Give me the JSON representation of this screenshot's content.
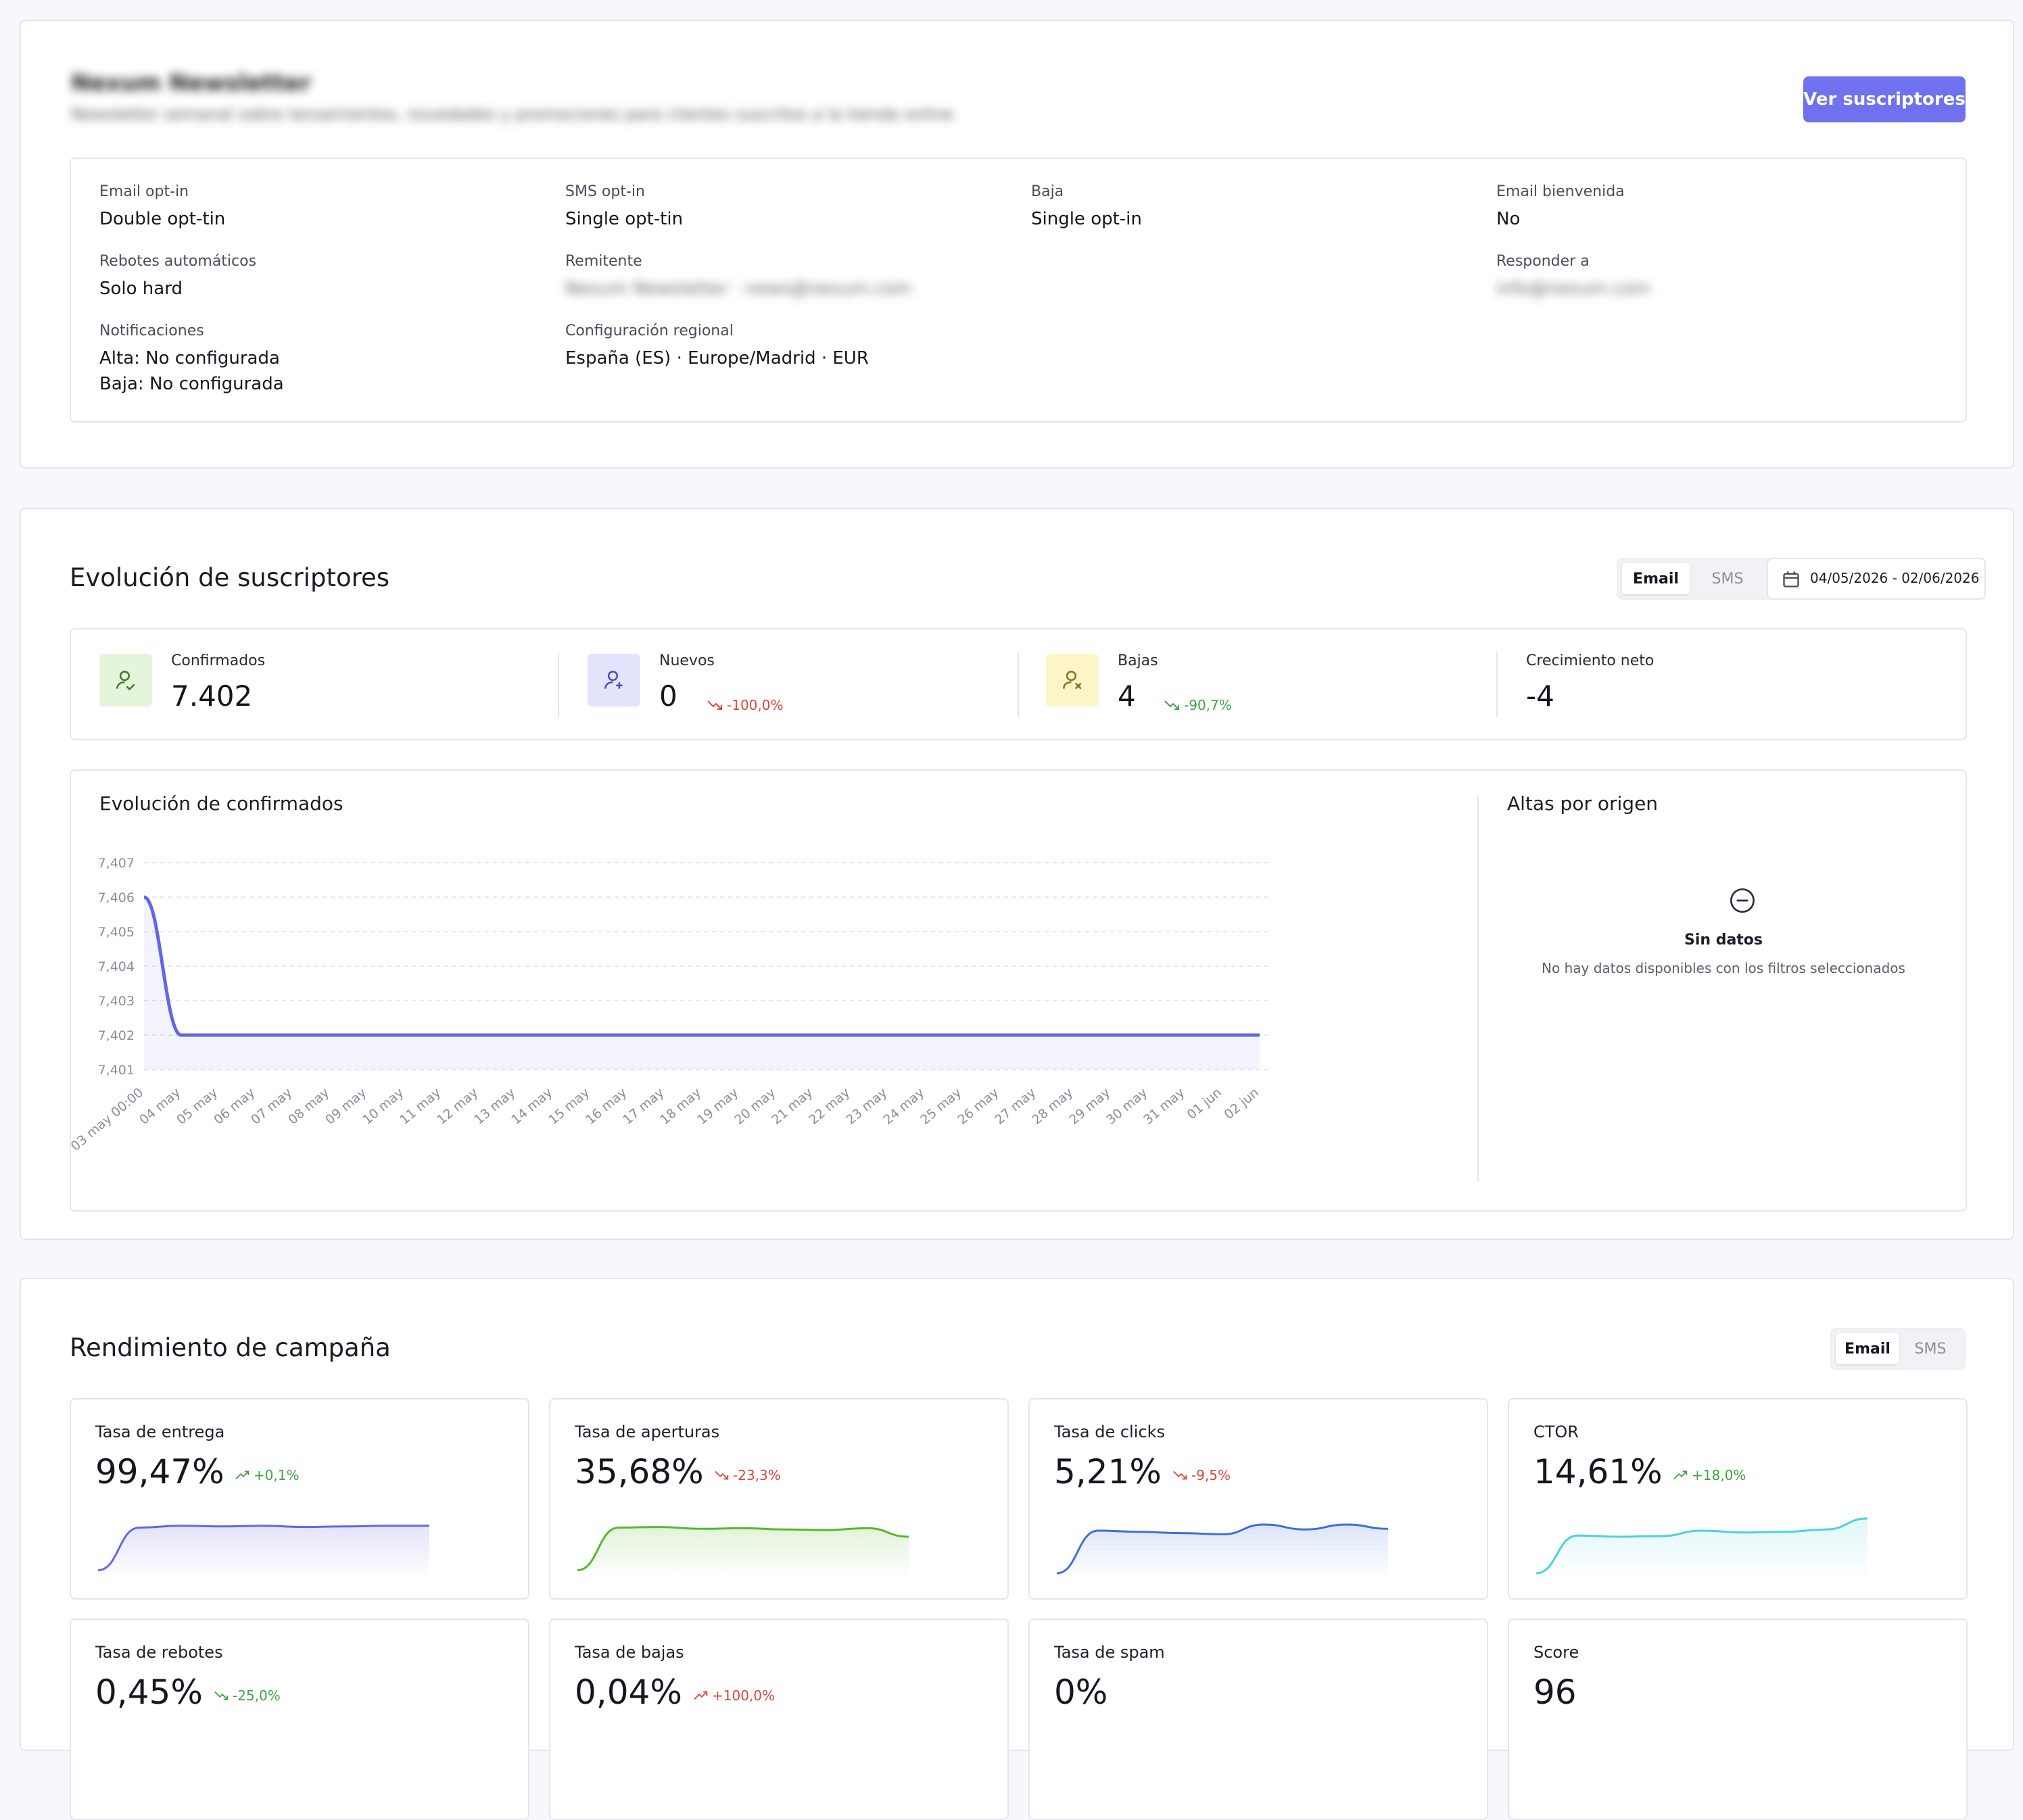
{
  "list": {
    "title": "Nexum Newsletter",
    "description": "Newsletter semanal sobre lanzamientos, novedades y promociones para clientes suscritos a la tienda online",
    "view_subscribers_label": "Ver suscriptores",
    "config": {
      "email_optin_label": "Email opt-in",
      "email_optin_value": "Double opt-tin",
      "sms_optin_label": "SMS opt-in",
      "sms_optin_value": "Single opt-tin",
      "baja_label": "Baja",
      "baja_value": "Single opt-in",
      "email_bienvenida_label": "Email bienvenida",
      "email_bienvenida_value": "No",
      "rebotes_label": "Rebotes automáticos",
      "rebotes_value": "Solo hard",
      "remitente_label": "Remitente",
      "remitente_value": "Nexum Newsletter · news@nexum.com",
      "responder_label": "Responder a",
      "responder_value": "info@nexum.com",
      "notificaciones_label": "Notificaciones",
      "notif_alta": "Alta: No configurada",
      "notif_baja": "Baja: No configurada",
      "regional_label": "Configuración regional",
      "regional_value": "España (ES) · Europe/Madrid · EUR"
    }
  },
  "evolution": {
    "title": "Evolución de suscriptores",
    "channel_email": "Email",
    "channel_sms": "SMS",
    "date_range": "04/05/2026 - 02/06/2026",
    "stats": {
      "confirmados_label": "Confirmados",
      "confirmados_value": "7.402",
      "nuevos_label": "Nuevos",
      "nuevos_value": "0",
      "nuevos_delta": "-100,0%",
      "bajas_label": "Bajas",
      "bajas_value": "4",
      "bajas_delta": "-90,7%",
      "crecimiento_label": "Crecimiento neto",
      "crecimiento_value": "-4"
    },
    "chart_title": "Evolución de confirmados",
    "origin_title": "Altas por origen",
    "empty_title": "Sin datos",
    "empty_text": "No hay datos disponibles con los filtros seleccionados",
    "colors": {
      "line": "#6366e8",
      "positive": "#3fa33f",
      "negative": "#e0453a"
    }
  },
  "chart_data": {
    "type": "line",
    "title": "Evolución de confirmados",
    "xlabel": "",
    "ylabel": "",
    "y_ticks": [
      "7,401",
      "7,402",
      "7,403",
      "7,404",
      "7,405",
      "7,406",
      "7,407"
    ],
    "ylim": [
      7401,
      7407
    ],
    "x": [
      "03 may 00:00",
      "04 may",
      "05 may",
      "06 may",
      "07 may",
      "08 may",
      "09 may",
      "10 may",
      "11 may",
      "12 may",
      "13 may",
      "14 may",
      "15 may",
      "16 may",
      "17 may",
      "18 may",
      "19 may",
      "20 may",
      "21 may",
      "22 may",
      "23 may",
      "24 may",
      "25 may",
      "26 may",
      "27 may",
      "28 may",
      "29 may",
      "30 may",
      "31 may",
      "01 jun",
      "02 jun"
    ],
    "series": [
      {
        "values": [
          7406,
          7402,
          7402,
          7402,
          7402,
          7402,
          7402,
          7402,
          7402,
          7402,
          7402,
          7402,
          7402,
          7402,
          7402,
          7402,
          7402,
          7402,
          7402,
          7402,
          7402,
          7402,
          7402,
          7402,
          7402,
          7402,
          7402,
          7402,
          7402,
          7402,
          7402
        ]
      }
    ],
    "grid": true,
    "legend": "none"
  },
  "performance": {
    "title": "Rendimiento de campaña",
    "channel_email": "Email",
    "channel_sms": "SMS",
    "metrics": [
      {
        "title": "Tasa de entrega",
        "value": "99,47%",
        "delta": "+0,1%",
        "trend": "up",
        "color": "#6366e8",
        "spark": [
          0.15,
          0.85,
          0.88,
          0.87,
          0.88,
          0.86,
          0.87,
          0.88,
          0.88
        ]
      },
      {
        "title": "Tasa de aperturas",
        "value": "35,68%",
        "delta": "-23,3%",
        "trend": "down",
        "color": "#55b82d",
        "spark": [
          0.15,
          0.85,
          0.86,
          0.83,
          0.84,
          0.82,
          0.81,
          0.84,
          0.7
        ]
      },
      {
        "title": "Tasa de clicks",
        "value": "5,21%",
        "delta": "-9,5%",
        "trend": "down",
        "color": "#3d6ee0",
        "spark": [
          0.1,
          0.8,
          0.78,
          0.76,
          0.74,
          0.9,
          0.82,
          0.9,
          0.83
        ]
      },
      {
        "title": "CTOR",
        "value": "14,61%",
        "delta": "+18,0%",
        "trend": "up",
        "color": "#4fd1d9",
        "spark": [
          0.1,
          0.72,
          0.7,
          0.71,
          0.8,
          0.77,
          0.78,
          0.82,
          1.0
        ]
      },
      {
        "title": "Tasa de rebotes",
        "value": "0,45%",
        "delta": "-25,0%",
        "trend": "down",
        "color": "#6366e8",
        "spark": []
      },
      {
        "title": "Tasa de bajas",
        "value": "0,04%",
        "delta": "+100,0%",
        "trend": "up",
        "color": "#6366e8",
        "spark": []
      },
      {
        "title": "Tasa de spam",
        "value": "0%",
        "delta": "",
        "trend": "",
        "color": "#6366e8",
        "spark": []
      },
      {
        "title": "Score",
        "value": "96",
        "delta": "",
        "trend": "",
        "color": "#6366e8",
        "spark": []
      }
    ]
  }
}
